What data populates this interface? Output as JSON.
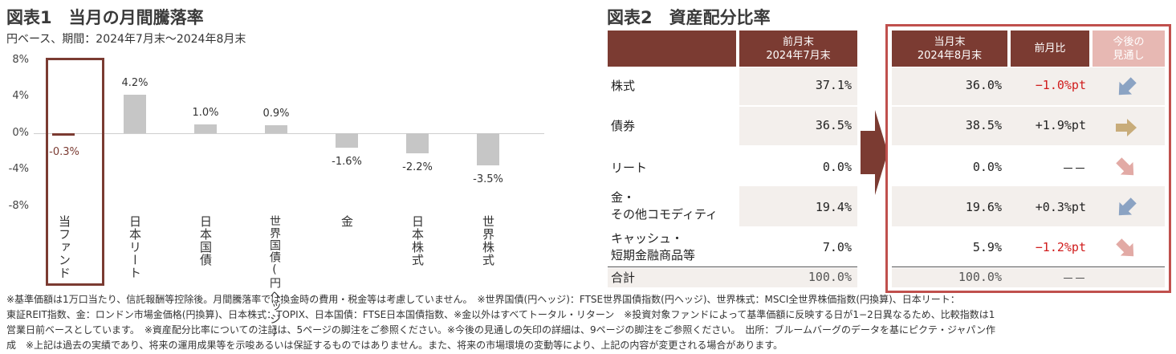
{
  "chart1": {
    "title": "図表1　当月の月間騰落率",
    "subtitle": "円ベース、期間：2024年7月末～2024年8月末",
    "ticks": [
      "8%",
      "4%",
      "0%",
      "-4%",
      "-8%"
    ]
  },
  "chart_data": {
    "type": "bar",
    "categories": [
      "当ファンド",
      "日本リート",
      "日本国債",
      "世界国債(円ヘッジ)",
      "金",
      "日本株式",
      "世界株式"
    ],
    "values": [
      -0.3,
      4.2,
      1.0,
      0.9,
      -1.6,
      -2.2,
      -3.5
    ],
    "value_labels": [
      "-0.3%",
      "4.2%",
      "1.0%",
      "0.9%",
      "-1.6%",
      "-2.2%",
      "-3.5%"
    ],
    "ylim": [
      -8,
      8
    ],
    "grid": false,
    "highlight_category": "当ファンド"
  },
  "chart2": {
    "title": "図表2　資産配分比率",
    "col_prev": [
      "前月末",
      "2024年7月末"
    ],
    "col_curr": [
      "当月末",
      "2024年8月末"
    ],
    "col_change": "前月比",
    "col_outlook": [
      "今後の",
      "見通し"
    ],
    "rows": [
      {
        "label": [
          "株式"
        ],
        "prev": "37.1%",
        "curr": "36.0%",
        "change": "−1.0%pt",
        "negative": true,
        "arrow": "arrow-up-left-icon",
        "arrow_color": "#8ba3c3"
      },
      {
        "label": [
          "債券"
        ],
        "prev": "36.5%",
        "curr": "38.5%",
        "change": "+1.9%pt",
        "negative": false,
        "arrow": "arrow-right-icon",
        "arrow_color": "#c8ac7a"
      },
      {
        "label": [
          "リート"
        ],
        "prev": "0.0%",
        "curr": "0.0%",
        "change": "－－",
        "negative": false,
        "arrow": "arrow-down-right-icon",
        "arrow_color": "#e2aaa5"
      },
      {
        "label": [
          "金・",
          "その他コモディティ"
        ],
        "prev": "19.4%",
        "curr": "19.6%",
        "change": "+0.3%pt",
        "negative": false,
        "arrow": "arrow-up-left-icon",
        "arrow_color": "#8ba3c3"
      },
      {
        "label": [
          "キャッシュ・",
          "短期金融商品等"
        ],
        "prev": "7.0%",
        "curr": "5.9%",
        "change": "−1.2%pt",
        "negative": true,
        "arrow": "arrow-down-right-icon",
        "arrow_color": "#e2aaa5"
      }
    ],
    "total": {
      "label": "合計",
      "prev": "100.0%",
      "curr": "100.0%",
      "change": "－－"
    }
  },
  "notes": [
    "※基準価額は1万口当たり、信託報酬等控除後。月間騰落率では換金時の費用・税金等は考慮していません。　※世界国債(円ヘッジ)：FTSE世界国債指数(円ヘッジ)、世界株式：MSCI全世界株価指数(円換算)、日本リート：",
    "東証REIT指数、金：ロンドン市場金価格(円換算)、日本株式：TOPIX、日本国債：FTSE日本国債指数、※金以外はすべてトータル・リターン　※投資対象ファンドによって基準価額に反映する日が1−2日異なるため、比較指数は1",
    "営業日前ベースとしています。　※資産配分比率についての注記は、5ページの脚注をご参照ください。※今後の見通しの矢印の詳細は、9ページの脚注をご参照ください。　出所：ブルームバーグのデータを基にピクテ・ジャパン作",
    "成　※上記は過去の実績であり、将来の運用成果等を示唆あるいは保証するものではありません。また、将来の市場環境の変動等により、上記の内容が変更される場合があります。"
  ],
  "colors": {
    "brand": "#7b3b32",
    "bar": "#c6c6c6",
    "negative": "#d01c1c",
    "row_bg": "#f3efec",
    "highlight_border": "#c0504d"
  }
}
